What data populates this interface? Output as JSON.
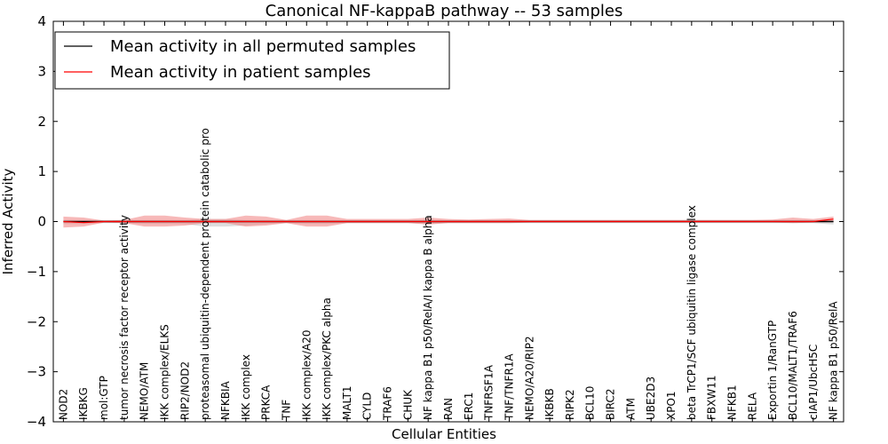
{
  "chart_data": {
    "type": "line",
    "title": "Canonical NF-kappaB pathway -- 53 samples",
    "xlabel": "Cellular Entities",
    "ylabel": "Inferred Activity",
    "ylim": [
      -4,
      4
    ],
    "yticks": [
      -4,
      -3,
      -2,
      -1,
      0,
      1,
      2,
      3,
      4
    ],
    "ytick_labels": [
      "−4",
      "−3",
      "−2",
      "−1",
      "0",
      "1",
      "2",
      "3",
      "4"
    ],
    "grid": false,
    "legend_position": "top-left",
    "categories": [
      "NOD2",
      "IKBKG",
      "mol:GTP",
      "tumor necrosis factor receptor activity",
      "NEMO/ATM",
      "IKK complex/ELKS",
      "RIP2/NOD2",
      "proteasomal ubiquitin-dependent protein catabolic pro",
      "NFKBIA",
      "IKK complex",
      "PRKCA",
      "TNF",
      "IKK complex/A20",
      "IKK complex/PKC alpha",
      "MALT1",
      "CYLD",
      "TRAF6",
      "CHUK",
      "NF kappa B1 p50/RelA/I kappa B alpha",
      "RAN",
      "ERC1",
      "TNFRSF1A",
      "TNF/TNFR1A",
      "NEMO/A20/RIP2",
      "IKBKB",
      "RIPK2",
      "BCL10",
      "BIRC2",
      "ATM",
      "UBE2D3",
      "XPO1",
      "beta TrCP1/SCF ubiquitin ligase complex",
      "FBXW11",
      "NFKB1",
      "RELA",
      "Exportin 1/RanGTP",
      "BCL10/MALT1/TRAF6",
      "cIAP1/UbcH5C",
      "NF kappa B1 p50/RelA"
    ],
    "series": [
      {
        "name": "Mean activity in all permuted samples",
        "color": "#000000",
        "values": [
          0.0,
          0.0,
          0.0,
          0.0,
          0.0,
          0.0,
          0.0,
          0.0,
          0.0,
          0.0,
          0.0,
          0.0,
          0.0,
          0.0,
          0.0,
          0.0,
          0.0,
          0.0,
          0.0,
          0.0,
          0.0,
          0.0,
          0.0,
          0.0,
          0.0,
          0.0,
          0.0,
          0.0,
          0.0,
          0.0,
          0.0,
          0.0,
          0.0,
          0.0,
          0.0,
          0.0,
          0.0,
          0.0,
          0.0
        ],
        "band_upper": [
          0.03,
          0.03,
          0.03,
          0.03,
          0.03,
          0.03,
          0.03,
          0.05,
          0.05,
          0.03,
          0.03,
          0.03,
          0.03,
          0.03,
          0.03,
          0.03,
          0.03,
          0.03,
          0.03,
          0.03,
          0.03,
          0.03,
          0.03,
          0.03,
          0.03,
          0.03,
          0.03,
          0.03,
          0.03,
          0.03,
          0.03,
          0.03,
          0.03,
          0.03,
          0.03,
          0.03,
          0.03,
          0.03,
          0.03
        ],
        "band_lower": [
          -0.05,
          -0.05,
          -0.03,
          -0.03,
          -0.05,
          -0.05,
          -0.05,
          -0.1,
          -0.1,
          -0.08,
          -0.05,
          -0.03,
          -0.05,
          -0.05,
          -0.03,
          -0.03,
          -0.03,
          -0.03,
          -0.05,
          -0.03,
          -0.03,
          -0.03,
          -0.03,
          -0.03,
          -0.03,
          -0.03,
          -0.03,
          -0.03,
          -0.03,
          -0.03,
          -0.03,
          -0.03,
          -0.03,
          -0.03,
          -0.03,
          -0.03,
          -0.03,
          -0.03,
          -0.06
        ]
      },
      {
        "name": "Mean activity in patient samples",
        "color": "#ff0000",
        "band_color": "#f08080",
        "values": [
          0.0,
          -0.02,
          0.0,
          0.0,
          0.0,
          0.0,
          0.0,
          0.0,
          0.0,
          0.0,
          0.0,
          0.0,
          0.0,
          0.0,
          0.0,
          0.0,
          0.0,
          0.0,
          0.0,
          0.0,
          0.0,
          0.0,
          0.0,
          0.0,
          0.0,
          0.0,
          0.0,
          0.0,
          0.0,
          0.0,
          0.0,
          0.0,
          0.0,
          0.0,
          0.0,
          0.0,
          0.0,
          0.0,
          0.05
        ],
        "band_upper": [
          0.1,
          0.08,
          0.02,
          0.03,
          0.12,
          0.12,
          0.08,
          0.05,
          0.05,
          0.12,
          0.1,
          0.03,
          0.12,
          0.12,
          0.05,
          0.05,
          0.05,
          0.05,
          0.08,
          0.05,
          0.04,
          0.05,
          0.06,
          0.03,
          0.03,
          0.03,
          0.03,
          0.03,
          0.03,
          0.03,
          0.03,
          0.03,
          0.03,
          0.03,
          0.03,
          0.04,
          0.08,
          0.05,
          0.1
        ],
        "band_lower": [
          -0.12,
          -0.1,
          -0.02,
          -0.03,
          -0.1,
          -0.1,
          -0.08,
          -0.03,
          -0.03,
          -0.1,
          -0.08,
          -0.03,
          -0.1,
          -0.1,
          -0.03,
          -0.03,
          -0.03,
          -0.03,
          -0.06,
          -0.03,
          -0.03,
          -0.03,
          -0.03,
          -0.02,
          -0.02,
          -0.02,
          -0.02,
          -0.02,
          -0.02,
          -0.02,
          -0.02,
          -0.02,
          -0.02,
          -0.02,
          -0.02,
          -0.02,
          -0.03,
          -0.02,
          -0.01
        ]
      }
    ]
  }
}
